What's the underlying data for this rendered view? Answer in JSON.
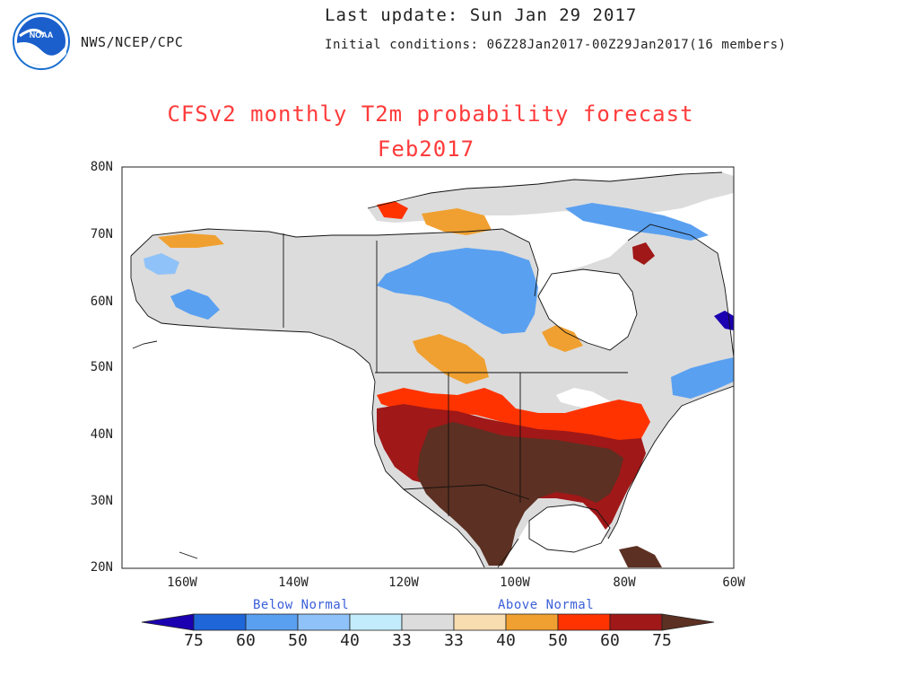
{
  "header": {
    "agency": "NWS/NCEP/CPC",
    "last_update": "Last update: Sun Jan 29 2017",
    "initial_conditions": "Initial conditions: 06Z28Jan2017-00Z29Jan2017(16 members)",
    "logo_text": "NOAA"
  },
  "map": {
    "title": "CFSv2 monthly T2m probability forecast",
    "subtitle": "Feb2017",
    "region": "North America",
    "lat_range": [
      20,
      80
    ],
    "lon_range": [
      -170,
      -60
    ],
    "lat_ticks": [
      "80N",
      "70N",
      "60N",
      "50N",
      "40N",
      "30N",
      "20N"
    ],
    "lon_ticks": [
      "160W",
      "140W",
      "120W",
      "100W",
      "80W",
      "60W"
    ]
  },
  "legend": {
    "below_label": "Below Normal",
    "above_label": "Above Normal",
    "values": [
      "75",
      "60",
      "50",
      "40",
      "33",
      "33",
      "40",
      "50",
      "60",
      "75"
    ],
    "colors": [
      "#1a00b0",
      "#1f66d9",
      "#5aa0f0",
      "#8fc2f8",
      "#c2ecfb",
      "#dcdcdc",
      "#f8ddb0",
      "#f0a030",
      "#ff3300",
      "#a01818",
      "#5c3022"
    ]
  }
}
